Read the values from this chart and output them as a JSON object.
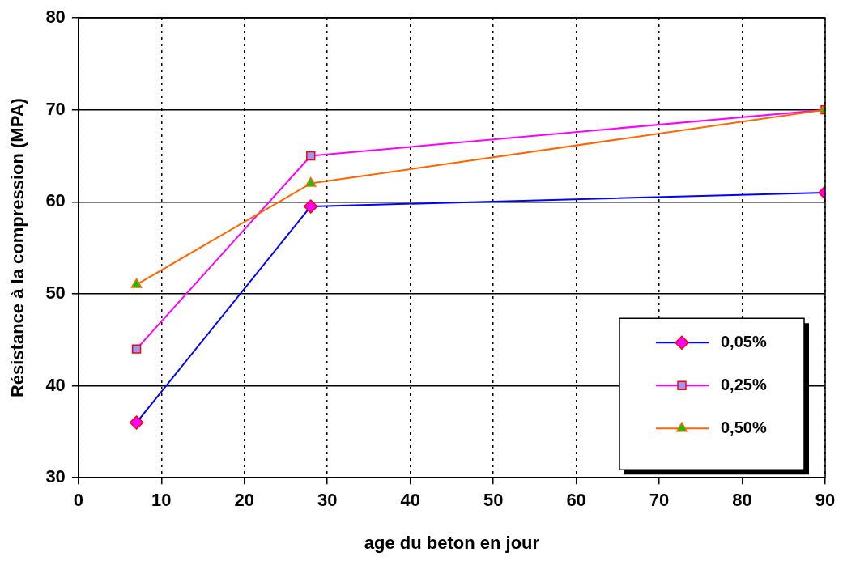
{
  "chart_data": {
    "type": "line",
    "xlabel": "age du beton en jour",
    "ylabel": "Résistance à la compression (MPA)",
    "x": [
      7,
      28,
      90
    ],
    "series": [
      {
        "name": "0,05%",
        "color": "#0000ff",
        "marker": "diamond",
        "values": [
          36,
          59.5,
          61
        ]
      },
      {
        "name": "0,25%",
        "color": "#ff00ff",
        "marker": "square",
        "values": [
          44,
          65,
          70
        ]
      },
      {
        "name": "0,50%",
        "color": "#ff6600",
        "marker": "triangle",
        "values": [
          51,
          62,
          70
        ]
      }
    ],
    "xlim": [
      0,
      90
    ],
    "xticks": [
      0,
      10,
      20,
      30,
      40,
      50,
      60,
      70,
      80,
      90
    ],
    "ylim": [
      30,
      80
    ],
    "yticks": [
      30,
      40,
      50,
      60,
      70,
      80
    ],
    "grid": true,
    "legend": "bottom right",
    "line_style": "solid"
  }
}
